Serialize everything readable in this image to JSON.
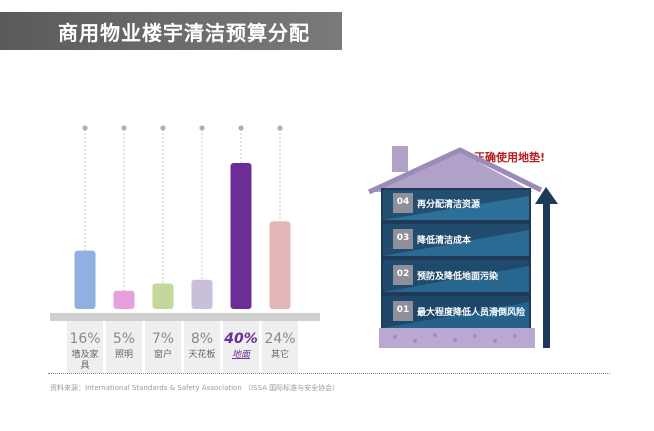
{
  "title": "商用物业楼宇清洁预算分配",
  "chart_data": {
    "type": "bar",
    "categories": [
      "墙及家具",
      "照明",
      "窗户",
      "天花板",
      "地面",
      "其它"
    ],
    "values": [
      16,
      5,
      7,
      8,
      40,
      24
    ],
    "value_labels": [
      "16%",
      "5%",
      "7%",
      "8%",
      "40%",
      "24%"
    ],
    "colors": [
      "#8fb1e0",
      "#e5a0dd",
      "#c3d89a",
      "#c9bfdb",
      "#6c2d97",
      "#e3b7b8"
    ],
    "highlight_index": 4,
    "highlight_color": "#6c2d97",
    "ylim": [
      0,
      40
    ]
  },
  "house": {
    "arrow_label": "正确使用地垫!",
    "items": [
      {
        "num": "04",
        "text": "再分配清洁资源"
      },
      {
        "num": "03",
        "text": "降低清洁成本"
      },
      {
        "num": "02",
        "text": "预防及降低地面污染"
      },
      {
        "num": "01",
        "text": "最大程度降低人员滑倒风险"
      }
    ]
  },
  "source": "资料来源：International Standards & Safety Association （ISSA 国际标准与安全协会）"
}
